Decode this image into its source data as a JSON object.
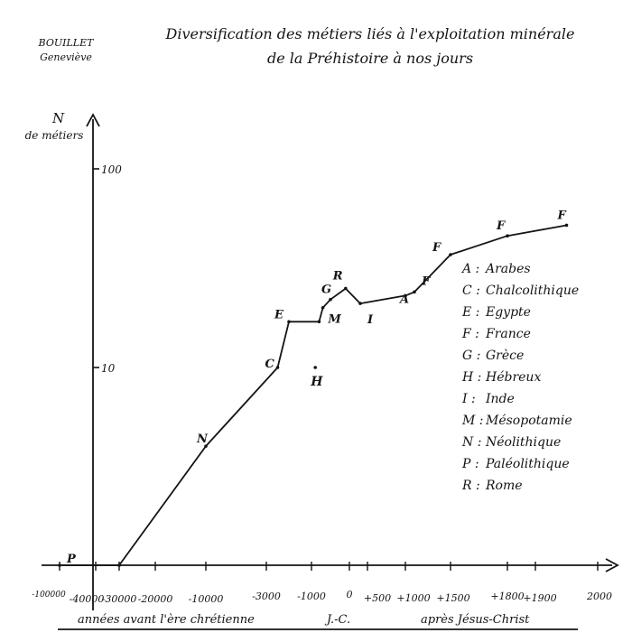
{
  "header": {
    "author_line1": "BOUILLET",
    "author_line2": "Geneviève",
    "title_line1": "Diversification des métiers liés à l'exploitation minérale",
    "title_line2": "de la Préhistoire à nos jours"
  },
  "chart_data": {
    "type": "line",
    "title": "Diversification des métiers liés à l'exploitation minérale de la Préhistoire à nos jours",
    "ylabel_line1": "N",
    "ylabel_line2": "de métiers",
    "xlabel_before": "années avant l'ère chrétienne",
    "xlabel_center": "J.-C.",
    "xlabel_after": "après Jésus-Christ",
    "y_scale": "log",
    "y_ticks": [
      {
        "value": 10,
        "label": "10"
      },
      {
        "value": 100,
        "label": "100"
      }
    ],
    "x_tick_labels": [
      "-100000",
      "-40000",
      "-30000",
      "-20000",
      "-10000",
      "-3000",
      "-1000",
      "0",
      "+500",
      "+1000",
      "+1500",
      "+1800",
      "+1900",
      "2000"
    ],
    "series": [
      {
        "points": [
          {
            "x": "-100000",
            "y": 1,
            "label": "P"
          },
          {
            "x": "-30000",
            "y": 1
          },
          {
            "x": "-10000",
            "y": 4,
            "label": "N"
          },
          {
            "x": "-2500",
            "y": 10,
            "label": "C"
          },
          {
            "x": "-2000",
            "y": 17,
            "label": "E"
          },
          {
            "x": "-800",
            "y": 17,
            "label": "M"
          },
          {
            "x": "-700",
            "y": 20
          },
          {
            "x": "-500",
            "y": 22,
            "label": "G"
          },
          {
            "x": "-100",
            "y": 25,
            "label": "R"
          },
          {
            "x": "+300",
            "y": 21,
            "label": "I"
          },
          {
            "x": "+1000",
            "y": 23,
            "label": "A"
          },
          {
            "x": "+1100",
            "y": 24,
            "label": "F"
          },
          {
            "x": "+1500",
            "y": 37,
            "label": "F"
          },
          {
            "x": "+1800",
            "y": 46,
            "label": "F"
          },
          {
            "x": "+1950",
            "y": 52,
            "label": "F"
          }
        ]
      }
    ],
    "isolated_points": [
      {
        "x": "-900",
        "y": 10,
        "label": "H"
      }
    ],
    "legend": [
      {
        "key": "A",
        "name": "Arabes"
      },
      {
        "key": "C",
        "name": "Chalcolithique"
      },
      {
        "key": "E",
        "name": "Egypte"
      },
      {
        "key": "F",
        "name": "France"
      },
      {
        "key": "G",
        "name": "Grèce"
      },
      {
        "key": "H",
        "name": "Hébreux"
      },
      {
        "key": "I",
        "name": "Inde"
      },
      {
        "key": "M",
        "name": "Mésopotamie"
      },
      {
        "key": "N",
        "name": "Néolithique"
      },
      {
        "key": "P",
        "name": "Paléolithique"
      },
      {
        "key": "R",
        "name": "Rome"
      }
    ],
    "legend_placement": "right",
    "grid": false
  }
}
